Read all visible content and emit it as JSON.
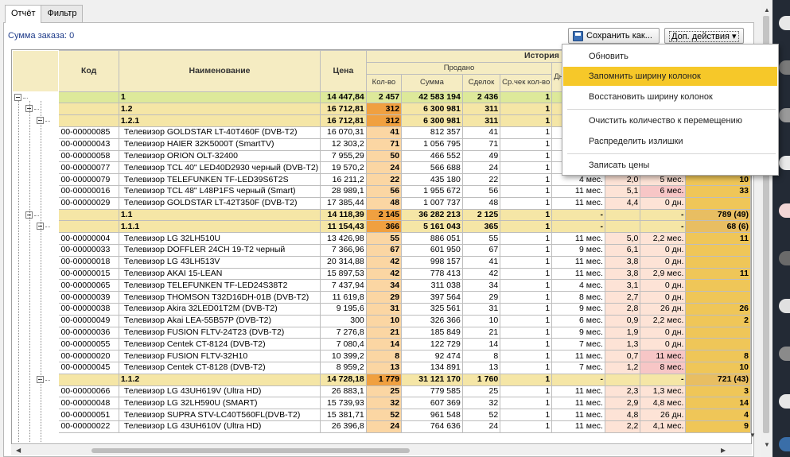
{
  "tabs": [
    {
      "label": "Отчёт"
    },
    {
      "label": "Фильтр"
    }
  ],
  "summa": "Сумма заказа: 0",
  "buttons": {
    "save": "Сохранить как...",
    "more": "Доп. действия ▾"
  },
  "menu": {
    "items": [
      "Обновить",
      "Запомнить ширину колонок",
      "Восстановить ширину колонок",
      "Очистить количество к перемещению",
      "Распределить излишки",
      "Записать цены"
    ],
    "highlighted": 1
  },
  "header": {
    "kod": "Код",
    "name": "Наименование",
    "price": "Цена",
    "history": "История продаж",
    "sold": "Продано",
    "qty": "Кол-во",
    "sum": "Сумма",
    "deals": "Сделок",
    "avg": "Ср.чек кол-во",
    "avail": "Дней наличия"
  },
  "rows": [
    {
      "t": "g",
      "lvl": 1,
      "top": true,
      "code": "",
      "name": "1",
      "price": "14 447,84",
      "qty": "2 457",
      "sum": "42 583 194",
      "deals": "2 436",
      "avg": "1",
      "c10": "",
      "c11": "",
      "c12": "",
      "c13": ""
    },
    {
      "t": "g",
      "lvl": 2,
      "code": "",
      "name": "1.2",
      "price": "16 712,81",
      "qty": "312",
      "sum": "6 300 981",
      "deals": "311",
      "avg": "1",
      "c10": "",
      "c11": "",
      "c12": "",
      "c13": ""
    },
    {
      "t": "g",
      "lvl": 3,
      "code": "",
      "name": "1.2.1",
      "price": "16 712,81",
      "qty": "312",
      "sum": "6 300 981",
      "deals": "311",
      "avg": "1",
      "c10": "",
      "c11": "",
      "c12": "",
      "c13": ""
    },
    {
      "t": "i",
      "code": "00-00000085",
      "name": "Телевизор GOLDSTAR LT-40T460F (DVB-T2)",
      "price": "16 070,31",
      "qty": "41",
      "sum": "812 357",
      "deals": "41",
      "avg": "1",
      "c10": "2 м",
      "c11": "",
      "c12": "",
      "c13": ""
    },
    {
      "t": "i",
      "code": "00-00000043",
      "name": "Телевизор HAIER 32K5000T (SmartTV)",
      "price": "12 303,2",
      "qty": "71",
      "sum": "1 056 795",
      "deals": "71",
      "avg": "1",
      "c10": "9 м",
      "c11": "",
      "c12": "",
      "c13": ""
    },
    {
      "t": "i",
      "code": "00-00000058",
      "name": "Телевизор ORION OLT-32400",
      "price": "7 955,29",
      "qty": "50",
      "sum": "466 552",
      "deals": "49",
      "avg": "1",
      "c10": "5 м",
      "c11": "",
      "c12": "",
      "c13": ""
    },
    {
      "t": "i",
      "code": "00-00000077",
      "name": "Телевизор TCL 40\" LED40D2930 черный (DVB-T2)",
      "price": "19 570,2",
      "qty": "24",
      "sum": "566 688",
      "deals": "24",
      "avg": "1",
      "c10": "11 м",
      "c11": "",
      "c12": "",
      "c13": ""
    },
    {
      "t": "i",
      "code": "00-00000079",
      "name": "Телевизор TELEFUNKEN TF-LED39S6T2S",
      "price": "16 211,2",
      "qty": "22",
      "sum": "435 180",
      "deals": "22",
      "avg": "1",
      "c10": "4 мес.",
      "c11": "2,0",
      "c12": "5 мес.",
      "c13": "10"
    },
    {
      "t": "i",
      "code": "00-00000016",
      "name": "Телевизор TCL 48\" L48P1FS черный (Smart)",
      "price": "28 989,1",
      "qty": "56",
      "sum": "1 955 672",
      "deals": "56",
      "avg": "1",
      "c10": "11 мес.",
      "c11": "5,1",
      "c12": "6 мес.",
      "c12p": true,
      "c13": "33"
    },
    {
      "t": "i",
      "code": "00-00000029",
      "name": "Телевизор GOLDSTAR LT-42T350F (DVB-T2)",
      "price": "17 385,44",
      "qty": "48",
      "sum": "1 007 737",
      "deals": "48",
      "avg": "1",
      "c10": "11 мес.",
      "c11": "4,4",
      "c12": "0 дн.",
      "c13": ""
    },
    {
      "t": "g",
      "lvl": 2,
      "code": "",
      "name": "1.1",
      "price": "14 118,39",
      "qty": "2 145",
      "sum": "36 282 213",
      "deals": "2 125",
      "avg": "1",
      "c10": "-",
      "c11": "",
      "c12": "-",
      "c13": "789 (49)"
    },
    {
      "t": "g",
      "lvl": 3,
      "code": "",
      "name": "1.1.1",
      "price": "11 154,43",
      "qty": "366",
      "sum": "5 161 043",
      "deals": "365",
      "avg": "1",
      "c10": "-",
      "c11": "",
      "c12": "-",
      "c13": "68 (6)"
    },
    {
      "t": "i",
      "code": "00-00000004",
      "name": "Телевизор LG 32LH510U",
      "price": "13 426,98",
      "qty": "55",
      "sum": "886 051",
      "deals": "55",
      "avg": "1",
      "c10": "11 мес.",
      "c11": "5,0",
      "c12": "2,2 мес.",
      "c13": "11"
    },
    {
      "t": "i",
      "code": "00-00000033",
      "name": "Телевизор DOFFLER 24CH 19-T2 черный",
      "price": "7 366,96",
      "qty": "67",
      "sum": "601 950",
      "deals": "67",
      "avg": "1",
      "c10": "9 мес.",
      "c11": "6,1",
      "c12": "0 дн.",
      "c13": ""
    },
    {
      "t": "i",
      "code": "00-00000018",
      "name": "Телевизор LG 43LH513V",
      "price": "20 314,88",
      "qty": "42",
      "sum": "998 157",
      "deals": "41",
      "avg": "1",
      "c10": "11 мес.",
      "c11": "3,8",
      "c12": "0 дн.",
      "c13": ""
    },
    {
      "t": "i",
      "code": "00-00000015",
      "name": "Телевизор AKAI 15-LEAN",
      "price": "15 897,53",
      "qty": "42",
      "sum": "778 413",
      "deals": "42",
      "avg": "1",
      "c10": "11 мес.",
      "c11": "3,8",
      "c12": "2,9 мес.",
      "c13": "11"
    },
    {
      "t": "i",
      "code": "00-00000065",
      "name": "Телевизор TELEFUNKEN TF-LED24S38T2",
      "price": "7 437,94",
      "qty": "34",
      "sum": "311 038",
      "deals": "34",
      "avg": "1",
      "c10": "4 мес.",
      "c11": "3,1",
      "c12": "0 дн.",
      "c13": ""
    },
    {
      "t": "i",
      "code": "00-00000039",
      "name": "Телевизор THOMSON T32D16DH-01B (DVB-T2)",
      "price": "11 619,8",
      "qty": "29",
      "sum": "397 564",
      "deals": "29",
      "avg": "1",
      "c10": "8 мес.",
      "c11": "2,7",
      "c12": "0 дн.",
      "c13": ""
    },
    {
      "t": "i",
      "code": "00-00000038",
      "name": "Телевизор Akira 32LED01T2M (DVB-T2)",
      "price": "9 195,6",
      "qty": "31",
      "sum": "325 561",
      "deals": "31",
      "avg": "1",
      "c10": "9 мес.",
      "c11": "2,8",
      "c12": "26 дн.",
      "c13": "26"
    },
    {
      "t": "i",
      "code": "00-00000049",
      "name": "Телевизор Akai LEA-55B57P (DVB-T2)",
      "price": "300",
      "qty": "10",
      "sum": "326 366",
      "deals": "10",
      "avg": "1",
      "c10": "6 мес.",
      "c11": "0,9",
      "c12": "2,2 мес.",
      "c13": "2"
    },
    {
      "t": "i",
      "code": "00-00000036",
      "name": "Телевизор FUSION FLTV-24T23 (DVB-T2)",
      "price": "7 276,8",
      "qty": "21",
      "sum": "185 849",
      "deals": "21",
      "avg": "1",
      "c10": "9 мес.",
      "c11": "1,9",
      "c12": "0 дн.",
      "c13": ""
    },
    {
      "t": "i",
      "code": "00-00000055",
      "name": "Телевизор Centek CT-8124 (DVB-T2)",
      "price": "7 080,4",
      "qty": "14",
      "sum": "122 729",
      "deals": "14",
      "avg": "1",
      "c10": "7 мес.",
      "c11": "1,3",
      "c12": "0 дн.",
      "c13": ""
    },
    {
      "t": "i",
      "code": "00-00000020",
      "name": "Телевизор FUSION FLTV-32H10",
      "price": "10 399,2",
      "qty": "8",
      "sum": "92 474",
      "deals": "8",
      "avg": "1",
      "c10": "11 мес.",
      "c11": "0,7",
      "c12": "11 мес.",
      "c12p": true,
      "c13": "8"
    },
    {
      "t": "i",
      "code": "00-00000045",
      "name": "Телевизор Centek CT-8128 (DVB-T2)",
      "price": "8 959,2",
      "qty": "13",
      "sum": "134 891",
      "deals": "13",
      "avg": "1",
      "c10": "7 мес.",
      "c11": "1,2",
      "c12": "8 мес.",
      "c12p": true,
      "c13": "10"
    },
    {
      "t": "g",
      "lvl": 3,
      "code": "",
      "name": "1.1.2",
      "price": "14 728,18",
      "qty": "1 779",
      "sum": "31 121 170",
      "deals": "1 760",
      "avg": "1",
      "c10": "-",
      "c11": "",
      "c12": "-",
      "c13": "721 (43)"
    },
    {
      "t": "i",
      "code": "00-00000066",
      "name": "Телевизор LG 43UH619V (Ultra HD)",
      "price": "26 883,1",
      "qty": "25",
      "sum": "779 585",
      "deals": "25",
      "avg": "1",
      "c10": "11 мес.",
      "c11": "2,3",
      "c12": "1,3 мес.",
      "c13": "3"
    },
    {
      "t": "i",
      "code": "00-00000048",
      "name": "Телевизор LG 32LH590U (SMART)",
      "price": "15 739,93",
      "qty": "32",
      "sum": "607 369",
      "deals": "32",
      "avg": "1",
      "c10": "11 мес.",
      "c11": "2,9",
      "c12": "4,8 мес.",
      "c13": "14"
    },
    {
      "t": "i",
      "code": "00-00000051",
      "name": "Телевизор SUPRA STV-LC40T560FL(DVB-T2)",
      "price": "15 381,71",
      "qty": "52",
      "sum": "961 548",
      "deals": "52",
      "avg": "1",
      "c10": "11 мес.",
      "c11": "4,8",
      "c12": "26 дн.",
      "c13": "4"
    },
    {
      "t": "i",
      "code": "00-00000022",
      "name": "Телевизор LG 43UH610V (Ultra HD)",
      "price": "26 396,8",
      "qty": "24",
      "sum": "764 636",
      "deals": "24",
      "avg": "1",
      "c10": "11 мес.",
      "c11": "2,2",
      "c12": "4,1 мес.",
      "c13": "9"
    }
  ]
}
